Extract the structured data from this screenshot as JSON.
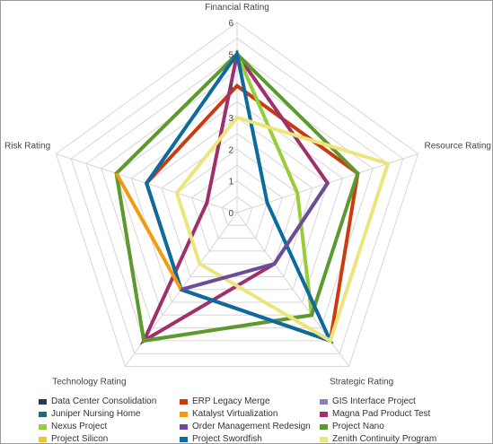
{
  "chart_data": {
    "type": "radar",
    "title": "",
    "axes": [
      "Financial Rating",
      "Resource Rating",
      "Strategic Rating",
      "Technology Rating",
      "Risk Rating"
    ],
    "ticks": [
      "0",
      "1",
      "2",
      "3",
      "4",
      "5",
      "6"
    ],
    "range": [
      0,
      6
    ],
    "grid": true,
    "legend_position": "bottom",
    "series": [
      {
        "name": "Data Center Consolidation",
        "color": "#1f3a6b",
        "values": [
          null,
          null,
          null,
          null,
          null
        ]
      },
      {
        "name": "ERP Legacy Merge",
        "color": "#cc3a10",
        "values": [
          4,
          4,
          5,
          3,
          3
        ]
      },
      {
        "name": "GIS Interface Project",
        "color": "#8f7fb8",
        "values": [
          null,
          null,
          null,
          null,
          null
        ]
      },
      {
        "name": "Juniper Nursing Home",
        "color": "#1a6f74",
        "values": [
          null,
          null,
          null,
          null,
          null
        ]
      },
      {
        "name": "Katalyst Virtualization",
        "color": "#f39a10",
        "values": [
          null,
          null,
          null,
          3,
          4
        ]
      },
      {
        "name": "Magna Pad Product Test",
        "color": "#a0306c",
        "values": [
          5,
          3,
          2,
          5,
          1
        ]
      },
      {
        "name": "Nexus Project",
        "color": "#98cc3a",
        "values": [
          5,
          2,
          4,
          5,
          4
        ]
      },
      {
        "name": "Order Management Redesign",
        "color": "#6a4d99",
        "values": [
          null,
          3,
          2,
          3,
          null
        ]
      },
      {
        "name": "Project Nano",
        "color": "#5c9a30",
        "values": [
          5,
          4,
          4,
          5,
          4
        ]
      },
      {
        "name": "Project Silicon",
        "color": "#f5c518",
        "values": [
          null,
          null,
          null,
          null,
          null
        ]
      },
      {
        "name": "Project Swordfish",
        "color": "#0d6a9f",
        "values": [
          5,
          1,
          5,
          3,
          3
        ]
      },
      {
        "name": "Zenith Continuity Program",
        "color": "#ece67a",
        "values": [
          3,
          5,
          5,
          2,
          2
        ]
      }
    ]
  }
}
